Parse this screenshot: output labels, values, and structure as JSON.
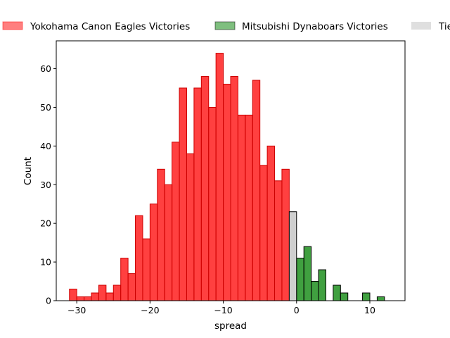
{
  "chart_data": {
    "type": "bar",
    "xlabel": "spread",
    "ylabel": "Count",
    "xlim": [
      -32.8,
      14.8
    ],
    "ylim": [
      0,
      67.2
    ],
    "xticks": [
      -30,
      -20,
      -10,
      0,
      10
    ],
    "yticks": [
      0,
      10,
      20,
      30,
      40,
      50,
      60
    ],
    "bin_width": 1,
    "legend": {
      "placement": "top",
      "entries": [
        {
          "label": "Yokohama Canon Eagles Victories",
          "color": "#ff0000"
        },
        {
          "label": "Mitsubishi Dynaboars Victories",
          "color": "#008000"
        },
        {
          "label": "Tie",
          "color": "#bfbfbf"
        }
      ]
    },
    "series": [
      {
        "name": "Yokohama Canon Eagles Victories",
        "color": "#ff0000",
        "edgecolor": "#cc0000",
        "bins": [
          [
            -31,
            3
          ],
          [
            -30,
            1
          ],
          [
            -29,
            1
          ],
          [
            -28,
            2
          ],
          [
            -27,
            4
          ],
          [
            -26,
            2
          ],
          [
            -25,
            4
          ],
          [
            -24,
            11
          ],
          [
            -23,
            7
          ],
          [
            -22,
            22
          ],
          [
            -21,
            16
          ],
          [
            -20,
            25
          ],
          [
            -19,
            34
          ],
          [
            -18,
            30
          ],
          [
            -17,
            41
          ],
          [
            -16,
            55
          ],
          [
            -15,
            38
          ],
          [
            -14,
            55
          ],
          [
            -13,
            58
          ],
          [
            -12,
            50
          ],
          [
            -11,
            64
          ],
          [
            -10,
            56
          ],
          [
            -9,
            58
          ],
          [
            -8,
            48
          ],
          [
            -7,
            48
          ],
          [
            -6,
            57
          ],
          [
            -5,
            35
          ],
          [
            -4,
            40
          ],
          [
            -3,
            31
          ],
          [
            -2,
            34
          ]
        ]
      },
      {
        "name": "Mitsubishi Dynaboars Victories",
        "color": "#008000",
        "edgecolor": "#000000",
        "bins": [
          [
            0,
            11
          ],
          [
            1,
            14
          ],
          [
            2,
            5
          ],
          [
            3,
            8
          ],
          [
            4,
            0
          ],
          [
            5,
            4
          ],
          [
            6,
            2
          ],
          [
            7,
            0
          ],
          [
            8,
            0
          ],
          [
            9,
            2
          ],
          [
            10,
            0
          ],
          [
            11,
            1
          ]
        ]
      },
      {
        "name": "Tie",
        "color": "#bfbfbf",
        "edgecolor": "#000000",
        "bins": [
          [
            -1,
            23
          ]
        ]
      }
    ]
  }
}
